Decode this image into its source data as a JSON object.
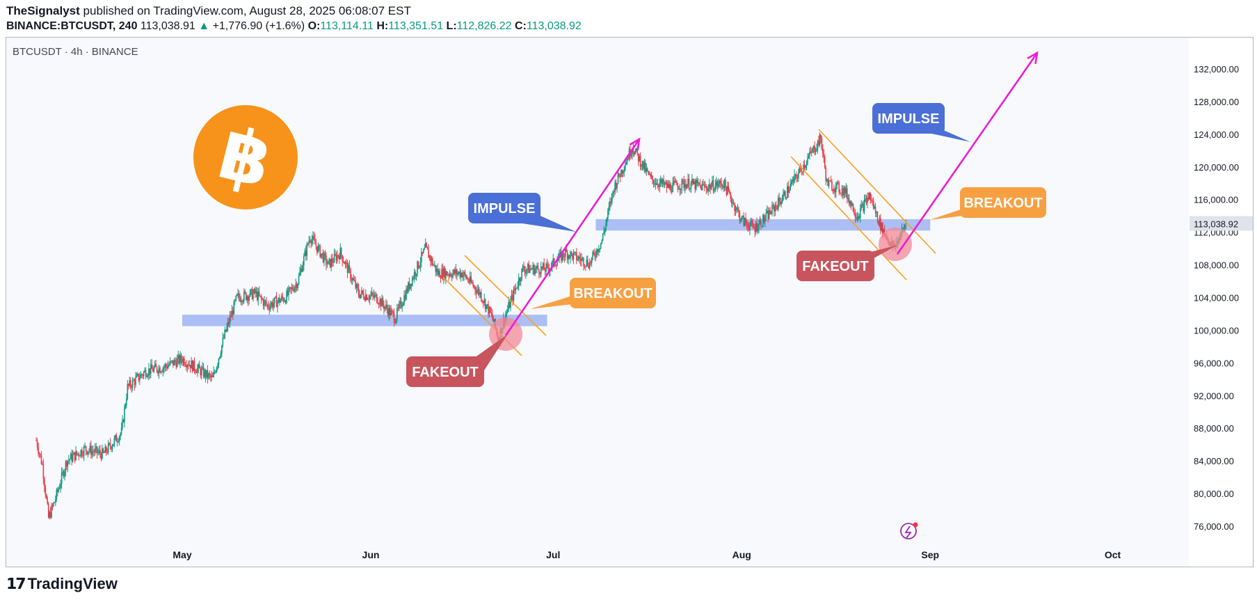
{
  "header": {
    "author": "TheSignalyst",
    "published": "published on TradingView.com, August 28, 2025 06:08:07 EST",
    "symbol": "BINANCE:BTCUSDT, 240",
    "last": "113,038.91",
    "change": "+1,776.90 (+1.6%)",
    "o_label": "O:",
    "o": "113,114.11",
    "h_label": "H:",
    "h": "113,351.51",
    "l_label": "L:",
    "l": "112,826.22",
    "c_label": "C:",
    "c": "113,038.92"
  },
  "pane_label": "BTCUSDT · 4h · BINANCE",
  "footer": {
    "brand": "TradingView"
  },
  "colors": {
    "up": "#089981",
    "down": "#f23645",
    "zone": "#9db5f2",
    "channel": "#f7a11a",
    "arrow": "#ec1cd2",
    "impulse": "#4a6fd6",
    "breakout": "#f7a042",
    "fakeout": "#c8555e",
    "btc": "#f7931a"
  },
  "chart_data": {
    "type": "candlestick",
    "symbol": "BTCUSDT",
    "timeframe": "4h",
    "ylim": [
      74000,
      134000
    ],
    "y_ticks": [
      "76,000.00",
      "80,000.00",
      "84,000.00",
      "88,000.00",
      "92,000.00",
      "96,000.00",
      "100,000.00",
      "104,000.00",
      "108,000.00",
      "112,000.00",
      "116,000.00",
      "120,000.00",
      "124,000.00",
      "128,000.00",
      "132,000.00"
    ],
    "x_ticks": [
      "May",
      "Jun",
      "Jul",
      "Aug",
      "Sep",
      "Oct"
    ],
    "last_price_label": "113,038.92",
    "price_path": [
      [
        "2025-04-07",
        86500
      ],
      [
        "2025-04-08",
        83500
      ],
      [
        "2025-04-09",
        77000
      ],
      [
        "2025-04-10",
        79000
      ],
      [
        "2025-04-12",
        84000
      ],
      [
        "2025-04-15",
        85500
      ],
      [
        "2025-04-18",
        84800
      ],
      [
        "2025-04-21",
        87500
      ],
      [
        "2025-04-22",
        93000
      ],
      [
        "2025-04-25",
        95000
      ],
      [
        "2025-04-28",
        95500
      ],
      [
        "2025-05-01",
        96500
      ],
      [
        "2025-05-04",
        95000
      ],
      [
        "2025-05-06",
        94000
      ],
      [
        "2025-05-08",
        99500
      ],
      [
        "2025-05-10",
        104000
      ],
      [
        "2025-05-13",
        104500
      ],
      [
        "2025-05-15",
        103000
      ],
      [
        "2025-05-18",
        104000
      ],
      [
        "2025-05-20",
        106000
      ],
      [
        "2025-05-22",
        111500
      ],
      [
        "2025-05-25",
        108000
      ],
      [
        "2025-05-27",
        109500
      ],
      [
        "2025-05-30",
        104500
      ],
      [
        "2025-06-02",
        104000
      ],
      [
        "2025-06-05",
        101500
      ],
      [
        "2025-06-07",
        105000
      ],
      [
        "2025-06-10",
        110000
      ],
      [
        "2025-06-12",
        107000
      ],
      [
        "2025-06-16",
        107000
      ],
      [
        "2025-06-19",
        104500
      ],
      [
        "2025-06-21",
        101500
      ],
      [
        "2025-06-22",
        99000
      ],
      [
        "2025-06-23",
        101500
      ],
      [
        "2025-06-26",
        107500
      ],
      [
        "2025-06-30",
        107500
      ],
      [
        "2025-07-03",
        109500
      ],
      [
        "2025-07-07",
        108200
      ],
      [
        "2025-07-09",
        111000
      ],
      [
        "2025-07-11",
        117500
      ],
      [
        "2025-07-14",
        122500
      ],
      [
        "2025-07-17",
        118500
      ],
      [
        "2025-07-20",
        117500
      ],
      [
        "2025-07-23",
        118000
      ],
      [
        "2025-07-26",
        117500
      ],
      [
        "2025-07-29",
        118000
      ],
      [
        "2025-08-01",
        113500
      ],
      [
        "2025-08-03",
        112500
      ],
      [
        "2025-08-05",
        113800
      ],
      [
        "2025-08-08",
        116500
      ],
      [
        "2025-08-11",
        120000
      ],
      [
        "2025-08-14",
        123500
      ],
      [
        "2025-08-15",
        118000
      ],
      [
        "2025-08-18",
        117000
      ],
      [
        "2025-08-20",
        114000
      ],
      [
        "2025-08-22",
        116500
      ],
      [
        "2025-08-24",
        112500
      ],
      [
        "2025-08-26",
        110000
      ],
      [
        "2025-08-28",
        113000
      ]
    ],
    "support_zones": [
      {
        "from": "2025-05-01",
        "to": "2025-06-30",
        "price_low": 100500,
        "price_high": 101900
      },
      {
        "from": "2025-07-08",
        "to": "2025-09-01",
        "price_low": 112200,
        "price_high": 113600
      }
    ],
    "annotations": [
      {
        "text": "IMPULSE",
        "kind": "impulse"
      },
      {
        "text": "BREAKOUT",
        "kind": "breakout"
      },
      {
        "text": "FAKEOUT",
        "kind": "fakeout"
      },
      {
        "text": "IMPULSE",
        "kind": "impulse"
      },
      {
        "text": "BREAKOUT",
        "kind": "breakout"
      },
      {
        "text": "FAKEOUT",
        "kind": "fakeout"
      }
    ]
  }
}
